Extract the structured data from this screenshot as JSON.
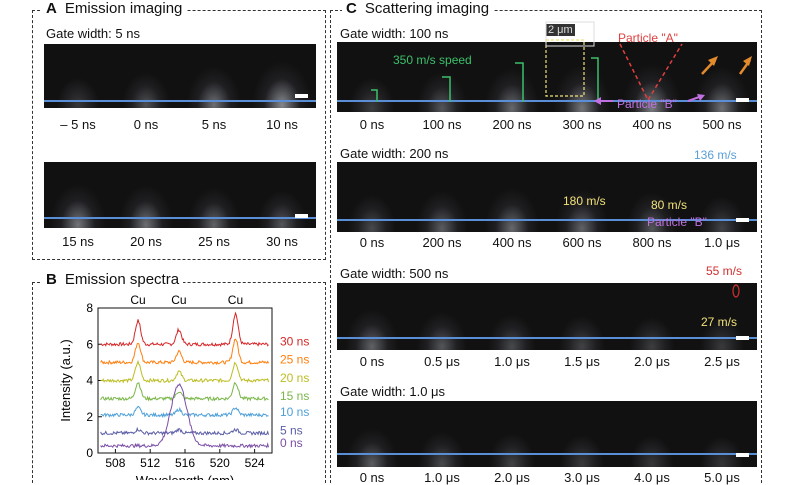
{
  "panelA": {
    "letter": "A",
    "title": "Emission imaging",
    "gate": "Gate width: 5 ns",
    "row1": [
      "– 5 ns",
      "0 ns",
      "5 ns",
      "10 ns"
    ],
    "row2": [
      "15 ns",
      "20 ns",
      "25 ns",
      "30 ns"
    ]
  },
  "panelB": {
    "letter": "B",
    "title": "Emission spectra",
    "cu_labels": [
      "Cu",
      "Cu",
      "Cu"
    ],
    "legend": [
      "30 ns",
      "25 ns",
      "20 ns",
      "15 ns",
      "10 ns",
      "5 ns",
      "0 ns"
    ],
    "colors": [
      "#d62728",
      "#ff7f0e",
      "#bcbd22",
      "#7ab648",
      "#4fa0d8",
      "#5b5ea6",
      "#7b4fa6"
    ]
  },
  "panelC": {
    "letter": "C",
    "title": "Scattering imaging",
    "gate1": "Gate width: 100 ns",
    "row1": [
      "0 ns",
      "100 ns",
      "200 ns",
      "300 ns",
      "400 ns",
      "500 ns"
    ],
    "ann1_speed": "350 m/s speed",
    "ann1_scale": "2 μm",
    "ann1_particleA": "Particle \"A\"",
    "ann1_particleB": "Particle \"B\"",
    "gate2": "Gate width: 200 ns",
    "row2": [
      "0 ns",
      "200 ns",
      "400 ns",
      "600 ns",
      "800 ns",
      "1.0 μs"
    ],
    "ann2_136": "136 m/s",
    "ann2_180": "180 m/s",
    "ann2_80": "80 m/s",
    "ann2_particleB": "Particle \"B\"",
    "gate3": "Gate width: 500 ns",
    "row3": [
      "0 ns",
      "0.5 μs",
      "1.0 μs",
      "1.5 μs",
      "2.0 μs",
      "2.5 μs"
    ],
    "ann3_55": "55 m/s",
    "ann3_27": "27 m/s",
    "gate4": "Gate width: 1.0 μs",
    "row4": [
      "0 ns",
      "1.0 μs",
      "2.0 μs",
      "3.0 μs",
      "4.0 μs",
      "5.0 μs"
    ]
  },
  "chart_data": {
    "type": "line",
    "title": "Emission spectra",
    "xlabel": "Wavelength (nm)",
    "ylabel": "Intensity (a.u.)",
    "xlim": [
      506,
      526
    ],
    "ylim": [
      0,
      8
    ],
    "xticks": [
      508,
      512,
      516,
      520,
      524
    ],
    "yticks": [
      0,
      2,
      4,
      6,
      8
    ],
    "peaks_nm": [
      510.6,
      515.3,
      521.8
    ],
    "series": [
      {
        "name": "30 ns",
        "offset": 6.0,
        "peaks": [
          1.3,
          0.8,
          1.7
        ]
      },
      {
        "name": "25 ns",
        "offset": 5.0,
        "peaks": [
          1.1,
          0.6,
          1.3
        ]
      },
      {
        "name": "20 ns",
        "offset": 4.0,
        "peaks": [
          1.0,
          0.5,
          1.0
        ]
      },
      {
        "name": "15 ns",
        "offset": 3.0,
        "peaks": [
          0.9,
          0.4,
          0.9
        ]
      },
      {
        "name": "10 ns",
        "offset": 2.1,
        "peaks": [
          0.4,
          0.3,
          0.4
        ]
      },
      {
        "name": "5 ns",
        "offset": 1.1,
        "peaks": [
          0.2,
          0.2,
          0.2
        ]
      },
      {
        "name": "0 ns",
        "offset": 0.4,
        "peaks": [
          0.0,
          3.4,
          0.0
        ]
      }
    ]
  }
}
